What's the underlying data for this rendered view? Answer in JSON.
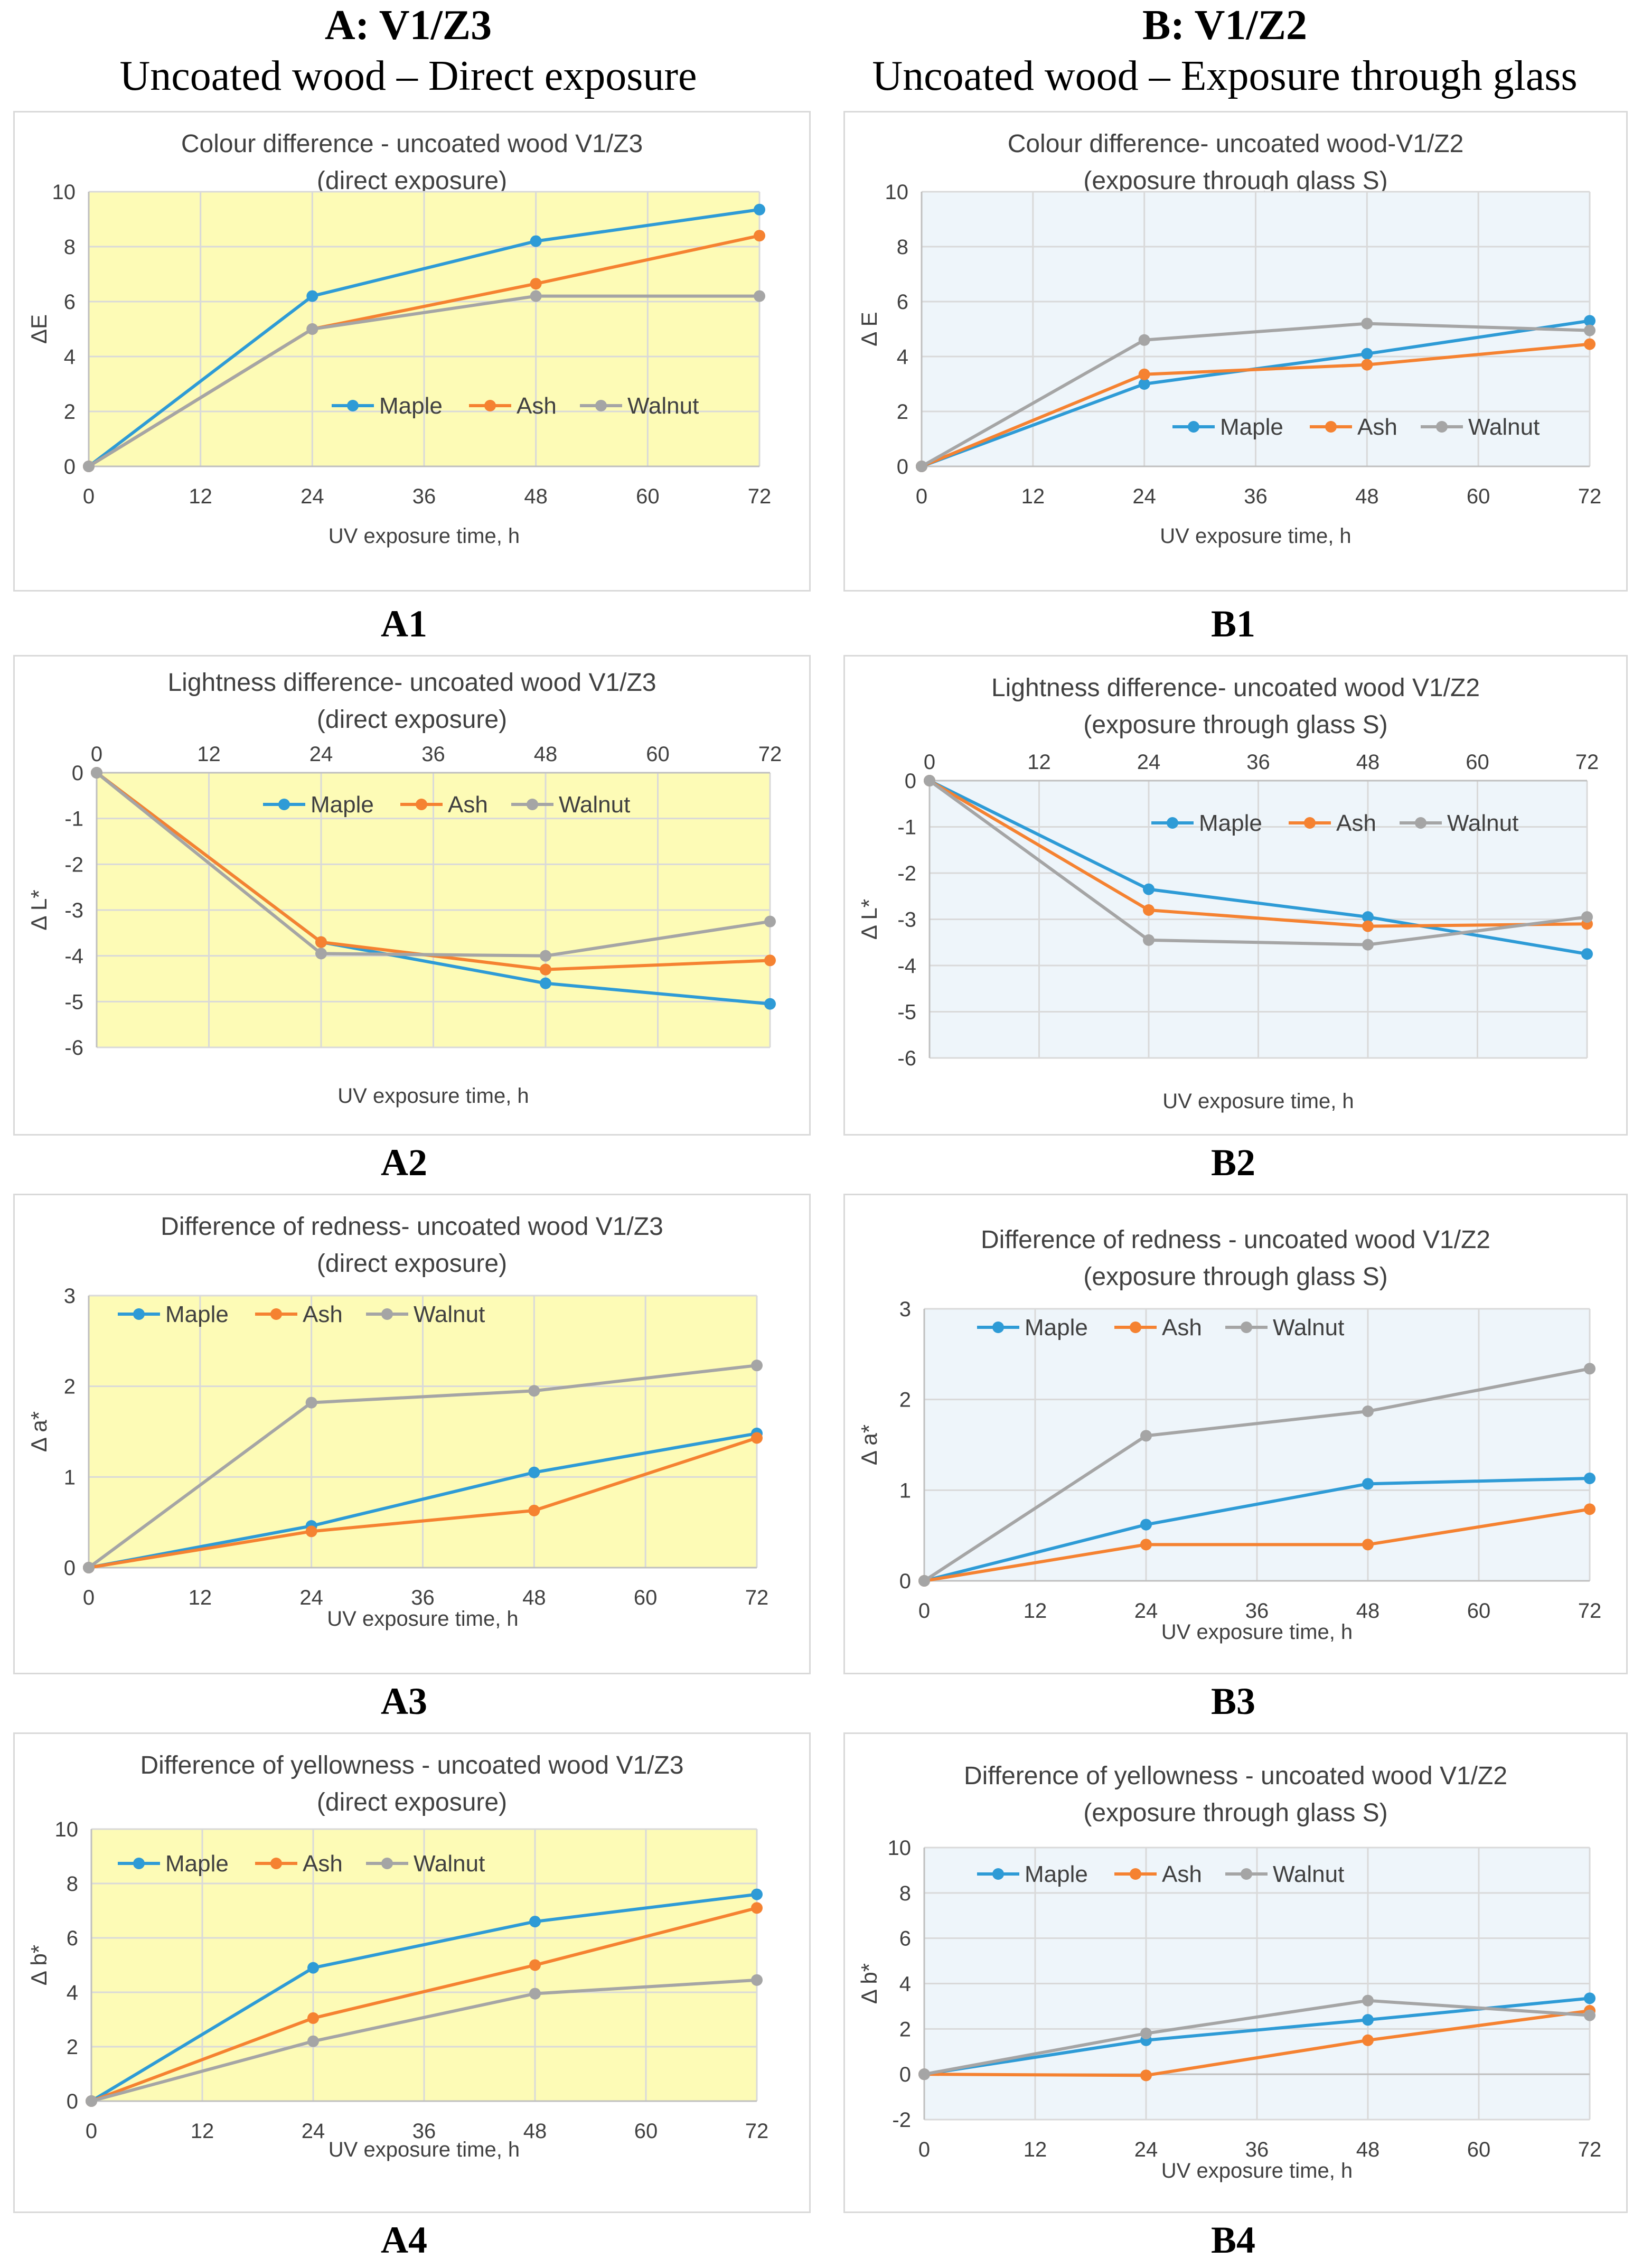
{
  "columns": [
    {
      "heading": "A: V1/Z3",
      "subheading": "Uncoated wood – Direct exposure"
    },
    {
      "heading": "B: V1/Z2",
      "subheading": "Uncoated wood – Exposure through glass"
    }
  ],
  "colors": {
    "Maple": "#2e9bd6",
    "Ash": "#f58231",
    "Walnut": "#a5a5a5",
    "bgA": "#fdfbb6",
    "bgB": "#eef5fa",
    "grid": "#d9d9d9",
    "axis": "#bfbfbf"
  },
  "chart_data": [
    {
      "id": "A1",
      "panel_label": "A1",
      "type": "line",
      "title": [
        "Colour difference - uncoated wood V1/Z3",
        "(direct exposure)"
      ],
      "xlabel": "UV exposure time, h",
      "ylabel": "ΔE",
      "x": [
        0,
        24,
        48,
        72
      ],
      "xticks": [
        0,
        12,
        24,
        36,
        48,
        60,
        72
      ],
      "ylim": [
        0,
        10
      ],
      "ystep": 2,
      "x_axis_position": "bottom",
      "legend": "middle-right",
      "bg": "A",
      "series": [
        {
          "name": "Maple",
          "values": [
            0,
            6.2,
            8.2,
            9.35
          ]
        },
        {
          "name": "Ash",
          "values": [
            0,
            5.0,
            6.65,
            8.4
          ]
        },
        {
          "name": "Walnut",
          "values": [
            0,
            5.0,
            6.2,
            6.2
          ]
        }
      ]
    },
    {
      "id": "B1",
      "panel_label": "B1",
      "type": "line",
      "title": [
        "Colour difference- uncoated wood-V1/Z2",
        "(exposure through glass S)"
      ],
      "xlabel": "UV exposure time, h",
      "ylabel": "Δ E",
      "x": [
        0,
        24,
        48,
        72
      ],
      "xticks": [
        0,
        12,
        24,
        36,
        48,
        60,
        72
      ],
      "ylim": [
        0,
        10
      ],
      "ystep": 2,
      "x_axis_position": "bottom",
      "legend": "middle-right",
      "bg": "B",
      "series": [
        {
          "name": "Maple",
          "values": [
            0,
            3.0,
            4.1,
            5.3
          ]
        },
        {
          "name": "Ash",
          "values": [
            0,
            3.35,
            3.7,
            4.45
          ]
        },
        {
          "name": "Walnut",
          "values": [
            0,
            4.6,
            5.2,
            4.95
          ]
        }
      ]
    },
    {
      "id": "A2",
      "panel_label": "A2",
      "type": "line",
      "title": [
        "Lightness difference- uncoated wood V1/Z3",
        "(direct exposure)"
      ],
      "xlabel": "UV exposure time, h",
      "ylabel": "Δ L*",
      "x": [
        0,
        24,
        48,
        72
      ],
      "xticks": [
        0,
        12,
        24,
        36,
        48,
        60,
        72
      ],
      "ylim": [
        -6,
        0
      ],
      "ystep": 1,
      "x_axis_position": "top",
      "legend": "top-center",
      "bg": "A",
      "series": [
        {
          "name": "Maple",
          "values": [
            0,
            -3.7,
            -4.6,
            -5.05
          ]
        },
        {
          "name": "Ash",
          "values": [
            0,
            -3.7,
            -4.3,
            -4.1
          ]
        },
        {
          "name": "Walnut",
          "values": [
            0,
            -3.95,
            -4.0,
            -3.25
          ]
        }
      ]
    },
    {
      "id": "B2",
      "panel_label": "B2",
      "type": "line",
      "title": [
        "Lightness difference- uncoated wood V1/Z2",
        "(exposure through glass S)"
      ],
      "xlabel": "UV exposure time, h",
      "ylabel": "Δ L*",
      "x": [
        0,
        24,
        48,
        72
      ],
      "xticks": [
        0,
        12,
        24,
        36,
        48,
        60,
        72
      ],
      "ylim": [
        -6,
        0
      ],
      "ystep": 1,
      "x_axis_position": "top",
      "legend": "top-center",
      "bg": "B",
      "series": [
        {
          "name": "Maple",
          "values": [
            0,
            -2.35,
            -2.95,
            -3.75
          ]
        },
        {
          "name": "Ash",
          "values": [
            0,
            -2.8,
            -3.15,
            -3.1
          ]
        },
        {
          "name": "Walnut",
          "values": [
            0,
            -3.45,
            -3.55,
            -2.95
          ]
        }
      ]
    },
    {
      "id": "A3",
      "panel_label": "A3",
      "type": "line",
      "title": [
        "Difference of redness- uncoated wood V1/Z3",
        "(direct exposure)"
      ],
      "xlabel": "UV exposure time, h",
      "ylabel": "Δ a*",
      "x": [
        0,
        24,
        48,
        72
      ],
      "xticks": [
        0,
        12,
        24,
        36,
        48,
        60,
        72
      ],
      "ylim": [
        0,
        3
      ],
      "ystep": 1,
      "x_axis_position": "bottom",
      "legend": "top-left",
      "bg": "A",
      "series": [
        {
          "name": "Maple",
          "values": [
            0,
            0.46,
            1.05,
            1.48
          ]
        },
        {
          "name": "Ash",
          "values": [
            0,
            0.4,
            0.63,
            1.43
          ]
        },
        {
          "name": "Walnut",
          "values": [
            0,
            1.82,
            1.95,
            2.23
          ]
        }
      ]
    },
    {
      "id": "B3",
      "panel_label": "B3",
      "type": "line",
      "title": [
        "Difference of redness - uncoated wood V1/Z2",
        "(exposure through glass S)"
      ],
      "xlabel": "UV exposure time, h",
      "ylabel": "Δ a*",
      "x": [
        0,
        24,
        48,
        72
      ],
      "xticks": [
        0,
        12,
        24,
        36,
        48,
        60,
        72
      ],
      "ylim": [
        0,
        3
      ],
      "ystep": 1,
      "x_axis_position": "bottom",
      "legend": "top-left",
      "bg": "B",
      "series": [
        {
          "name": "Maple",
          "values": [
            0,
            0.62,
            1.07,
            1.13
          ]
        },
        {
          "name": "Ash",
          "values": [
            0,
            0.4,
            0.4,
            0.79
          ]
        },
        {
          "name": "Walnut",
          "values": [
            0,
            1.6,
            1.87,
            2.34
          ]
        }
      ]
    },
    {
      "id": "A4",
      "panel_label": "A4",
      "type": "line",
      "title": [
        "Difference of yellowness - uncoated wood V1/Z3",
        "(direct exposure)"
      ],
      "xlabel": "UV exposure time, h",
      "ylabel": "Δ b*",
      "x": [
        0,
        24,
        48,
        72
      ],
      "xticks": [
        0,
        12,
        24,
        36,
        48,
        60,
        72
      ],
      "ylim": [
        0,
        10
      ],
      "ystep": 2,
      "x_axis_position": "bottom",
      "legend": "top-left",
      "bg": "A",
      "series": [
        {
          "name": "Maple",
          "values": [
            0,
            4.9,
            6.6,
            7.6
          ]
        },
        {
          "name": "Ash",
          "values": [
            0,
            3.05,
            5.0,
            7.1
          ]
        },
        {
          "name": "Walnut",
          "values": [
            0,
            2.2,
            3.95,
            4.45
          ]
        }
      ]
    },
    {
      "id": "B4",
      "panel_label": "B4",
      "type": "line",
      "title": [
        "Difference of yellowness - uncoated wood V1/Z2",
        "(exposure through glass S)"
      ],
      "xlabel": "UV exposure time, h",
      "ylabel": "Δ b*",
      "x": [
        0,
        24,
        48,
        72
      ],
      "xticks": [
        0,
        12,
        24,
        36,
        48,
        60,
        72
      ],
      "ylim": [
        -2,
        10
      ],
      "ystep": 2,
      "x_axis_position": "bottom",
      "legend": "top-left",
      "bg": "B",
      "series": [
        {
          "name": "Maple",
          "values": [
            0,
            1.5,
            2.4,
            3.35
          ]
        },
        {
          "name": "Ash",
          "values": [
            0,
            -0.05,
            1.5,
            2.8
          ]
        },
        {
          "name": "Walnut",
          "values": [
            0,
            1.8,
            3.25,
            2.6
          ]
        }
      ]
    }
  ]
}
